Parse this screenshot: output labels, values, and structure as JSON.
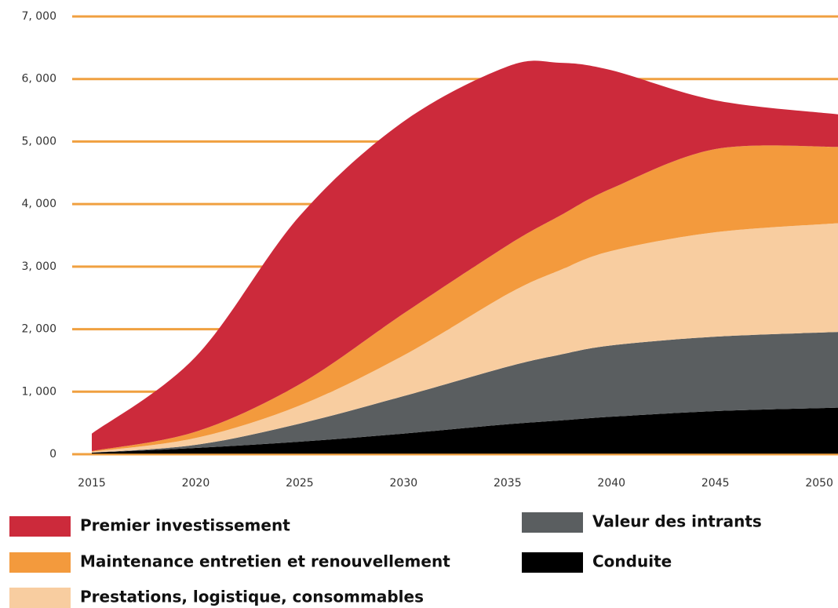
{
  "chart_data": {
    "type": "stacked-area",
    "x": [
      2015,
      2020,
      2025,
      2030,
      2035,
      2037.5,
      2040,
      2045,
      2050.9
    ],
    "xlim": [
      2014,
      2050.9
    ],
    "xticks": [
      2015,
      2020,
      2025,
      2030,
      2035,
      2040,
      2045,
      2050
    ],
    "ylim": [
      0,
      7000
    ],
    "yticks": [
      0,
      {
        "value": 1000,
        "label": "1, 000"
      },
      {
        "value": 2000,
        "label": "2, 000"
      },
      {
        "value": 3000,
        "label": "3, 000"
      },
      {
        "value": 4000,
        "label": "4, 000"
      },
      {
        "value": 5000,
        "label": "5, 000"
      },
      {
        "value": 6000,
        "label": "6, 000"
      },
      {
        "value": 7000,
        "label": "7, 000"
      }
    ],
    "grid": true,
    "grid_color": "#f0a040",
    "series": [
      {
        "name": "Conduite",
        "color": "#000000",
        "values": [
          25,
          100,
          200,
          330,
          480,
          540,
          600,
          690,
          745
        ]
      },
      {
        "name": "Valeur des intrants",
        "color": "#5a5e60",
        "values": [
          0,
          50,
          290,
          600,
          920,
          1050,
          1140,
          1190,
          1210
        ]
      },
      {
        "name": "Prestations, logistique, consommables",
        "color": "#f8cda0",
        "values": [
          15,
          110,
          290,
          650,
          1160,
          1350,
          1510,
          1670,
          1740
        ]
      },
      {
        "name": "Maintenance entretien et renouvellement",
        "color": "#f39a3d",
        "values": [
          10,
          100,
          340,
          670,
          780,
          870,
          1000,
          1330,
          1220
        ]
      },
      {
        "name": "Premier investissement",
        "color": "#cc2a3b",
        "values": [
          280,
          1200,
          2690,
          3070,
          2860,
          2450,
          1890,
          780,
          520
        ]
      }
    ]
  }
}
